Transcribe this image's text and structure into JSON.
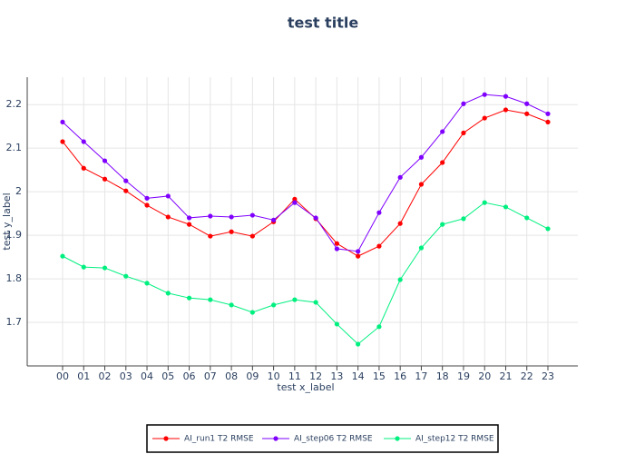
{
  "chart_data": {
    "type": "line",
    "title": "test title",
    "x_label": "test x_label",
    "y_label": "test y_label",
    "categories": [
      "00",
      "01",
      "02",
      "03",
      "04",
      "05",
      "06",
      "07",
      "08",
      "09",
      "10",
      "11",
      "12",
      "13",
      "14",
      "15",
      "16",
      "17",
      "18",
      "19",
      "20",
      "21",
      "22",
      "23"
    ],
    "series": [
      {
        "name": "AI_run1 T2 RMSE",
        "color": "#ff0000",
        "values": [
          2.115,
          2.054,
          2.029,
          2.002,
          1.969,
          1.942,
          1.925,
          1.898,
          1.908,
          1.898,
          1.931,
          1.983,
          1.938,
          1.881,
          1.852,
          1.875,
          1.927,
          2.017,
          2.067,
          2.135,
          2.169,
          2.188,
          2.179,
          2.16
        ]
      },
      {
        "name": "AI_step06 T2 RMSE",
        "color": "#7f00ff",
        "values": [
          2.16,
          2.115,
          2.071,
          2.025,
          1.985,
          1.99,
          1.94,
          1.944,
          1.942,
          1.946,
          1.935,
          1.975,
          1.94,
          1.869,
          1.863,
          1.952,
          2.033,
          2.079,
          2.138,
          2.202,
          2.223,
          2.219,
          2.202,
          2.179
        ]
      },
      {
        "name": "AI_step12 T2 RMSE",
        "color": "#00f080",
        "values": [
          1.852,
          1.827,
          1.825,
          1.806,
          1.79,
          1.767,
          1.756,
          1.752,
          1.74,
          1.723,
          1.74,
          1.752,
          1.746,
          1.696,
          1.65,
          1.69,
          1.798,
          1.871,
          1.925,
          1.938,
          1.975,
          1.965,
          1.94,
          1.915
        ]
      }
    ],
    "ylim": [
      1.6,
      2.263
    ],
    "yticks": [
      1.7,
      1.8,
      1.9,
      2,
      2.1,
      2.2
    ],
    "grid": true,
    "legend": "bottom"
  }
}
